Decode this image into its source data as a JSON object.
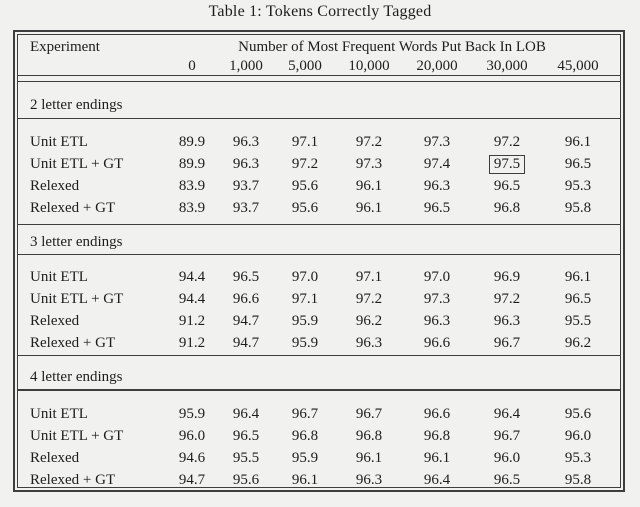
{
  "title": "Table 1: Tokens Correctly Tagged",
  "table": {
    "header": {
      "experiment_label": "Experiment",
      "group_label": "Number of Most Frequent Words Put Back In LOB",
      "columns": [
        "0",
        "1,000",
        "5,000",
        "10,000",
        "20,000",
        "30,000",
        "45,000"
      ]
    },
    "sections": [
      {
        "label": "2 letter endings",
        "rows": [
          {
            "name": "Unit ETL",
            "values": [
              "89.9",
              "96.3",
              "97.1",
              "97.2",
              "97.3",
              "97.2",
              "96.1"
            ]
          },
          {
            "name": "Unit ETL + GT",
            "values": [
              "89.9",
              "96.3",
              "97.2",
              "97.3",
              "97.4",
              "97.5",
              "96.5"
            ],
            "boxed_col": 5
          },
          {
            "name": "Relexed",
            "values": [
              "83.9",
              "93.7",
              "95.6",
              "96.1",
              "96.3",
              "96.5",
              "95.3"
            ]
          },
          {
            "name": "Relexed + GT",
            "values": [
              "83.9",
              "93.7",
              "95.6",
              "96.1",
              "96.5",
              "96.8",
              "95.8"
            ]
          }
        ]
      },
      {
        "label": "3 letter endings",
        "rows": [
          {
            "name": "Unit ETL",
            "values": [
              "94.4",
              "96.5",
              "97.0",
              "97.1",
              "97.0",
              "96.9",
              "96.1"
            ]
          },
          {
            "name": "Unit ETL + GT",
            "values": [
              "94.4",
              "96.6",
              "97.1",
              "97.2",
              "97.3",
              "97.2",
              "96.5"
            ]
          },
          {
            "name": "Relexed",
            "values": [
              "91.2",
              "94.7",
              "95.9",
              "96.2",
              "96.3",
              "96.3",
              "95.5"
            ]
          },
          {
            "name": "Relexed + GT",
            "values": [
              "91.2",
              "94.7",
              "95.9",
              "96.3",
              "96.6",
              "96.7",
              "96.2"
            ]
          }
        ]
      },
      {
        "label": "4 letter endings",
        "rows": [
          {
            "name": "Unit ETL",
            "values": [
              "95.9",
              "96.4",
              "96.7",
              "96.7",
              "96.6",
              "96.4",
              "95.6"
            ]
          },
          {
            "name": "Unit ETL + GT",
            "values": [
              "96.0",
              "96.5",
              "96.8",
              "96.8",
              "96.8",
              "96.7",
              "96.0"
            ]
          },
          {
            "name": "Relexed",
            "values": [
              "94.6",
              "95.5",
              "95.9",
              "96.1",
              "96.1",
              "96.0",
              "95.3"
            ]
          },
          {
            "name": "Relexed + GT",
            "values": [
              "94.7",
              "95.6",
              "96.1",
              "96.3",
              "96.4",
              "96.5",
              "95.8"
            ]
          }
        ]
      }
    ]
  },
  "colors": {
    "background": "#f1f2ef",
    "text": "#1d1d1d",
    "rule": "#3e3e3e"
  }
}
